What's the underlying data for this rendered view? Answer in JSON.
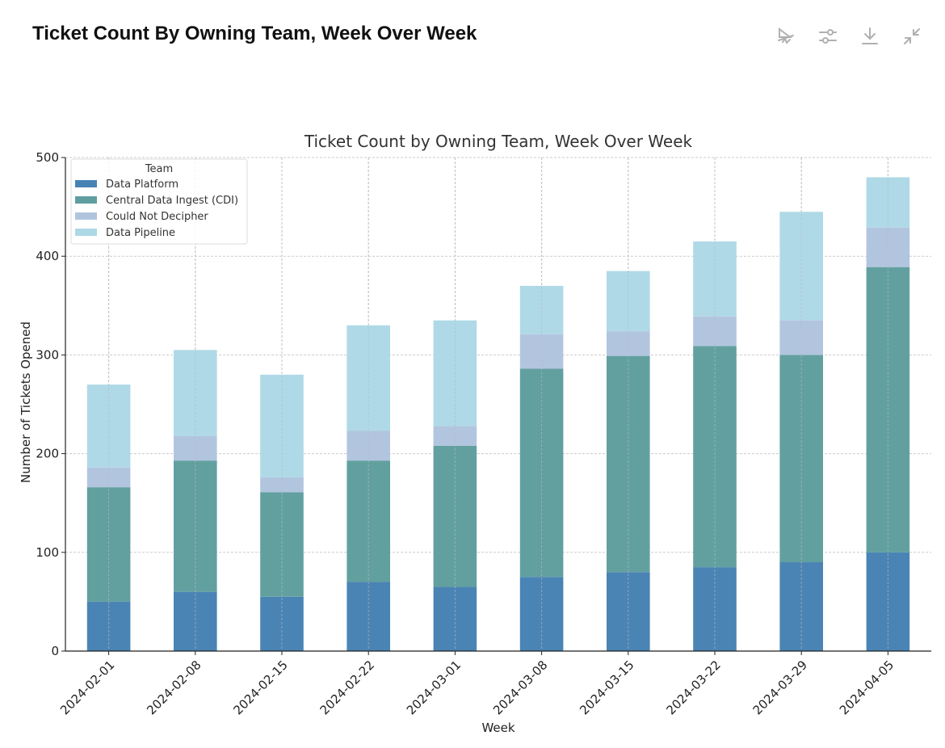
{
  "header": {
    "title": "Ticket Count By Owning Team, Week Over Week",
    "icons": [
      "chart-type-icon",
      "sliders-icon",
      "download-icon",
      "collapse-icon"
    ]
  },
  "chart_data": {
    "type": "bar",
    "stacked": true,
    "title": "Ticket Count by Owning Team, Week Over Week",
    "xlabel": "Week",
    "ylabel": "Number of Tickets Opened",
    "ylim": [
      0,
      500
    ],
    "yticks": [
      "0",
      "100",
      "200",
      "300",
      "400",
      "500"
    ],
    "grid": true,
    "legend": {
      "title": "Team",
      "placement": "top-left"
    },
    "categories": [
      "2024-02-01",
      "2024-02-08",
      "2024-02-15",
      "2024-02-22",
      "2024-03-01",
      "2024-03-08",
      "2024-03-15",
      "2024-03-22",
      "2024-03-29",
      "2024-04-05"
    ],
    "series": [
      {
        "name": "Data Platform",
        "color": "#4682b4",
        "values": [
          50,
          60,
          55,
          70,
          65,
          75,
          80,
          85,
          90,
          100
        ]
      },
      {
        "name": "Central Data Ingest (CDI)",
        "color": "#5f9e9e",
        "values": [
          116,
          133,
          106,
          123,
          143,
          211,
          219,
          224,
          210,
          289
        ]
      },
      {
        "name": "Could Not Decipher",
        "color": "#b0c4de",
        "values": [
          20,
          25,
          15,
          30,
          20,
          35,
          25,
          30,
          35,
          40
        ]
      },
      {
        "name": "Data Pipeline",
        "color": "#add8e6",
        "values": [
          84,
          87,
          104,
          107,
          107,
          49,
          61,
          76,
          110,
          51
        ]
      }
    ]
  }
}
